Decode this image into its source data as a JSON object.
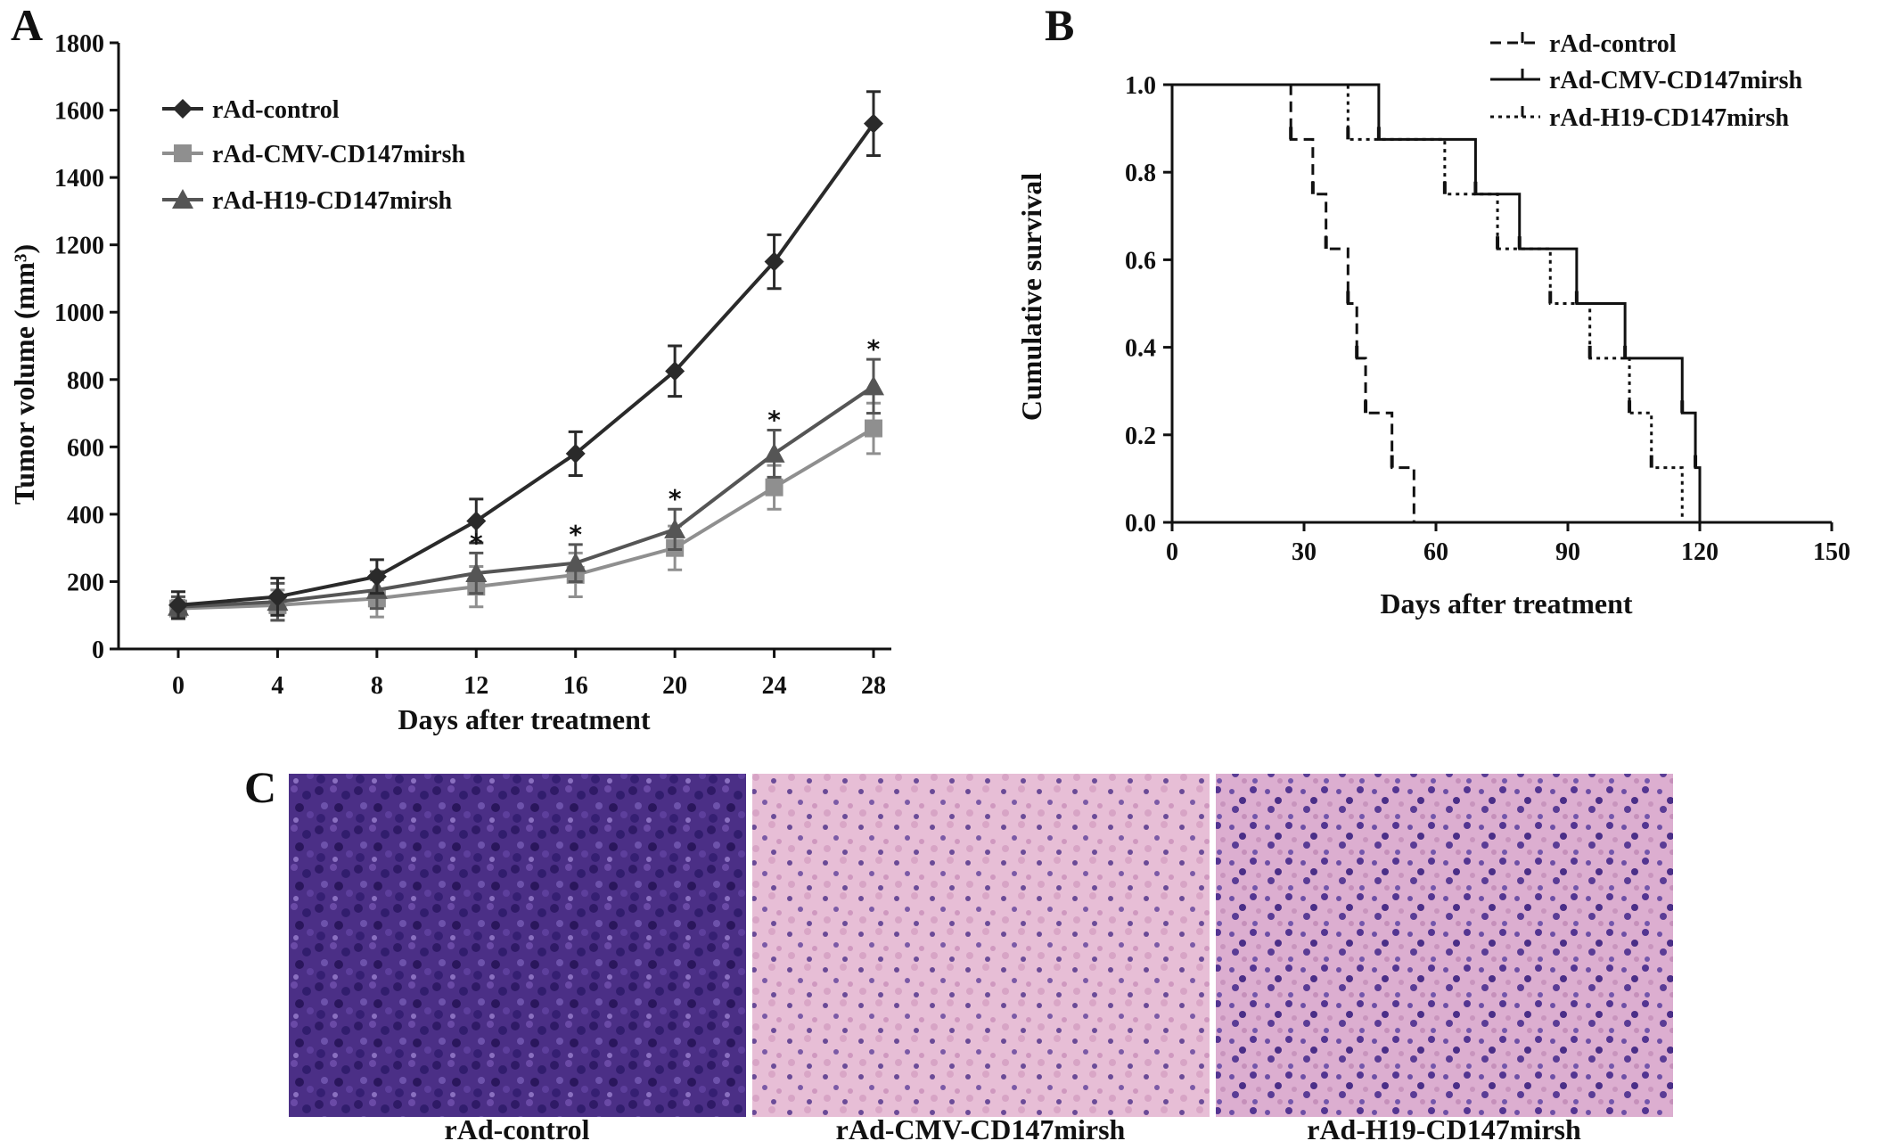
{
  "panels": {
    "a_label": "A",
    "b_label": "B",
    "c_label": "C"
  },
  "chart_data": [
    {
      "type": "line",
      "x_title": "Days after treatment",
      "y_title": "Tumor volume (mm³)",
      "xlim": [
        0,
        28
      ],
      "ylim": [
        0,
        1800
      ],
      "x_ticks": [
        0,
        4,
        8,
        12,
        16,
        20,
        24,
        28
      ],
      "y_ticks": [
        0,
        200,
        400,
        600,
        800,
        1000,
        1200,
        1400,
        1600,
        1800
      ],
      "legend_position": "top-left",
      "significance_marker": "*",
      "significant_x": [
        12,
        16,
        20,
        24,
        28
      ],
      "series": [
        {
          "name": "rAd-control",
          "marker": "diamond",
          "color": "#2a2a2a",
          "x": [
            0,
            4,
            8,
            12,
            16,
            20,
            24,
            28
          ],
          "y": [
            130,
            155,
            215,
            380,
            580,
            825,
            1150,
            1560
          ],
          "err": [
            40,
            55,
            50,
            65,
            65,
            75,
            80,
            95
          ]
        },
        {
          "name": "rAd-CMV-CD147mirsh",
          "marker": "square",
          "color": "#8f8f8f",
          "x": [
            0,
            4,
            8,
            12,
            16,
            20,
            24,
            28
          ],
          "y": [
            120,
            130,
            150,
            185,
            220,
            300,
            480,
            655
          ],
          "err": [
            25,
            45,
            55,
            60,
            65,
            65,
            65,
            75
          ]
        },
        {
          "name": "rAd-H19-CD147mirsh",
          "marker": "triangle",
          "color": "#555555",
          "x": [
            0,
            4,
            8,
            12,
            16,
            20,
            24,
            28
          ],
          "y": [
            125,
            140,
            175,
            225,
            255,
            355,
            580,
            780
          ],
          "err": [
            30,
            55,
            55,
            60,
            55,
            60,
            70,
            80
          ]
        }
      ]
    },
    {
      "type": "line",
      "subtype": "kaplan-meier",
      "x_title": "Days after treatment",
      "y_title": "Cumulative survival",
      "xlim": [
        0,
        150
      ],
      "ylim": [
        0,
        1.0
      ],
      "x_ticks": [
        0,
        30,
        60,
        90,
        120,
        150
      ],
      "y_ticks": [
        "0.0",
        "0.2",
        "0.4",
        "0.6",
        "0.8",
        "1.0"
      ],
      "legend_position": "top-right",
      "series": [
        {
          "name": "rAd-control",
          "style": "dashed",
          "steps": [
            [
              0,
              1.0
            ],
            [
              27,
              0.875
            ],
            [
              32,
              0.75
            ],
            [
              35,
              0.625
            ],
            [
              40,
              0.5
            ],
            [
              42,
              0.375
            ],
            [
              44,
              0.25
            ],
            [
              50,
              0.125
            ],
            [
              55,
              0.0
            ]
          ]
        },
        {
          "name": "rAd-CMV-CD147mirsh",
          "style": "solid",
          "steps": [
            [
              0,
              1.0
            ],
            [
              47,
              0.875
            ],
            [
              69,
              0.75
            ],
            [
              79,
              0.625
            ],
            [
              92,
              0.5
            ],
            [
              103,
              0.375
            ],
            [
              116,
              0.25
            ],
            [
              119,
              0.125
            ],
            [
              120,
              0.0
            ]
          ]
        },
        {
          "name": "rAd-H19-CD147mirsh",
          "style": "dotted",
          "steps": [
            [
              0,
              1.0
            ],
            [
              40,
              0.875
            ],
            [
              62,
              0.75
            ],
            [
              74,
              0.625
            ],
            [
              86,
              0.5
            ],
            [
              95,
              0.375
            ],
            [
              104,
              0.25
            ],
            [
              109,
              0.125
            ],
            [
              116,
              0.0
            ]
          ]
        }
      ]
    }
  ],
  "histology": {
    "panels": [
      {
        "caption": "rAd-control",
        "stain": "dense-purple"
      },
      {
        "caption": "rAd-CMV-CD147mirsh",
        "stain": "pink"
      },
      {
        "caption": "rAd-H19-CD147mirsh",
        "stain": "pink-purple"
      }
    ]
  }
}
